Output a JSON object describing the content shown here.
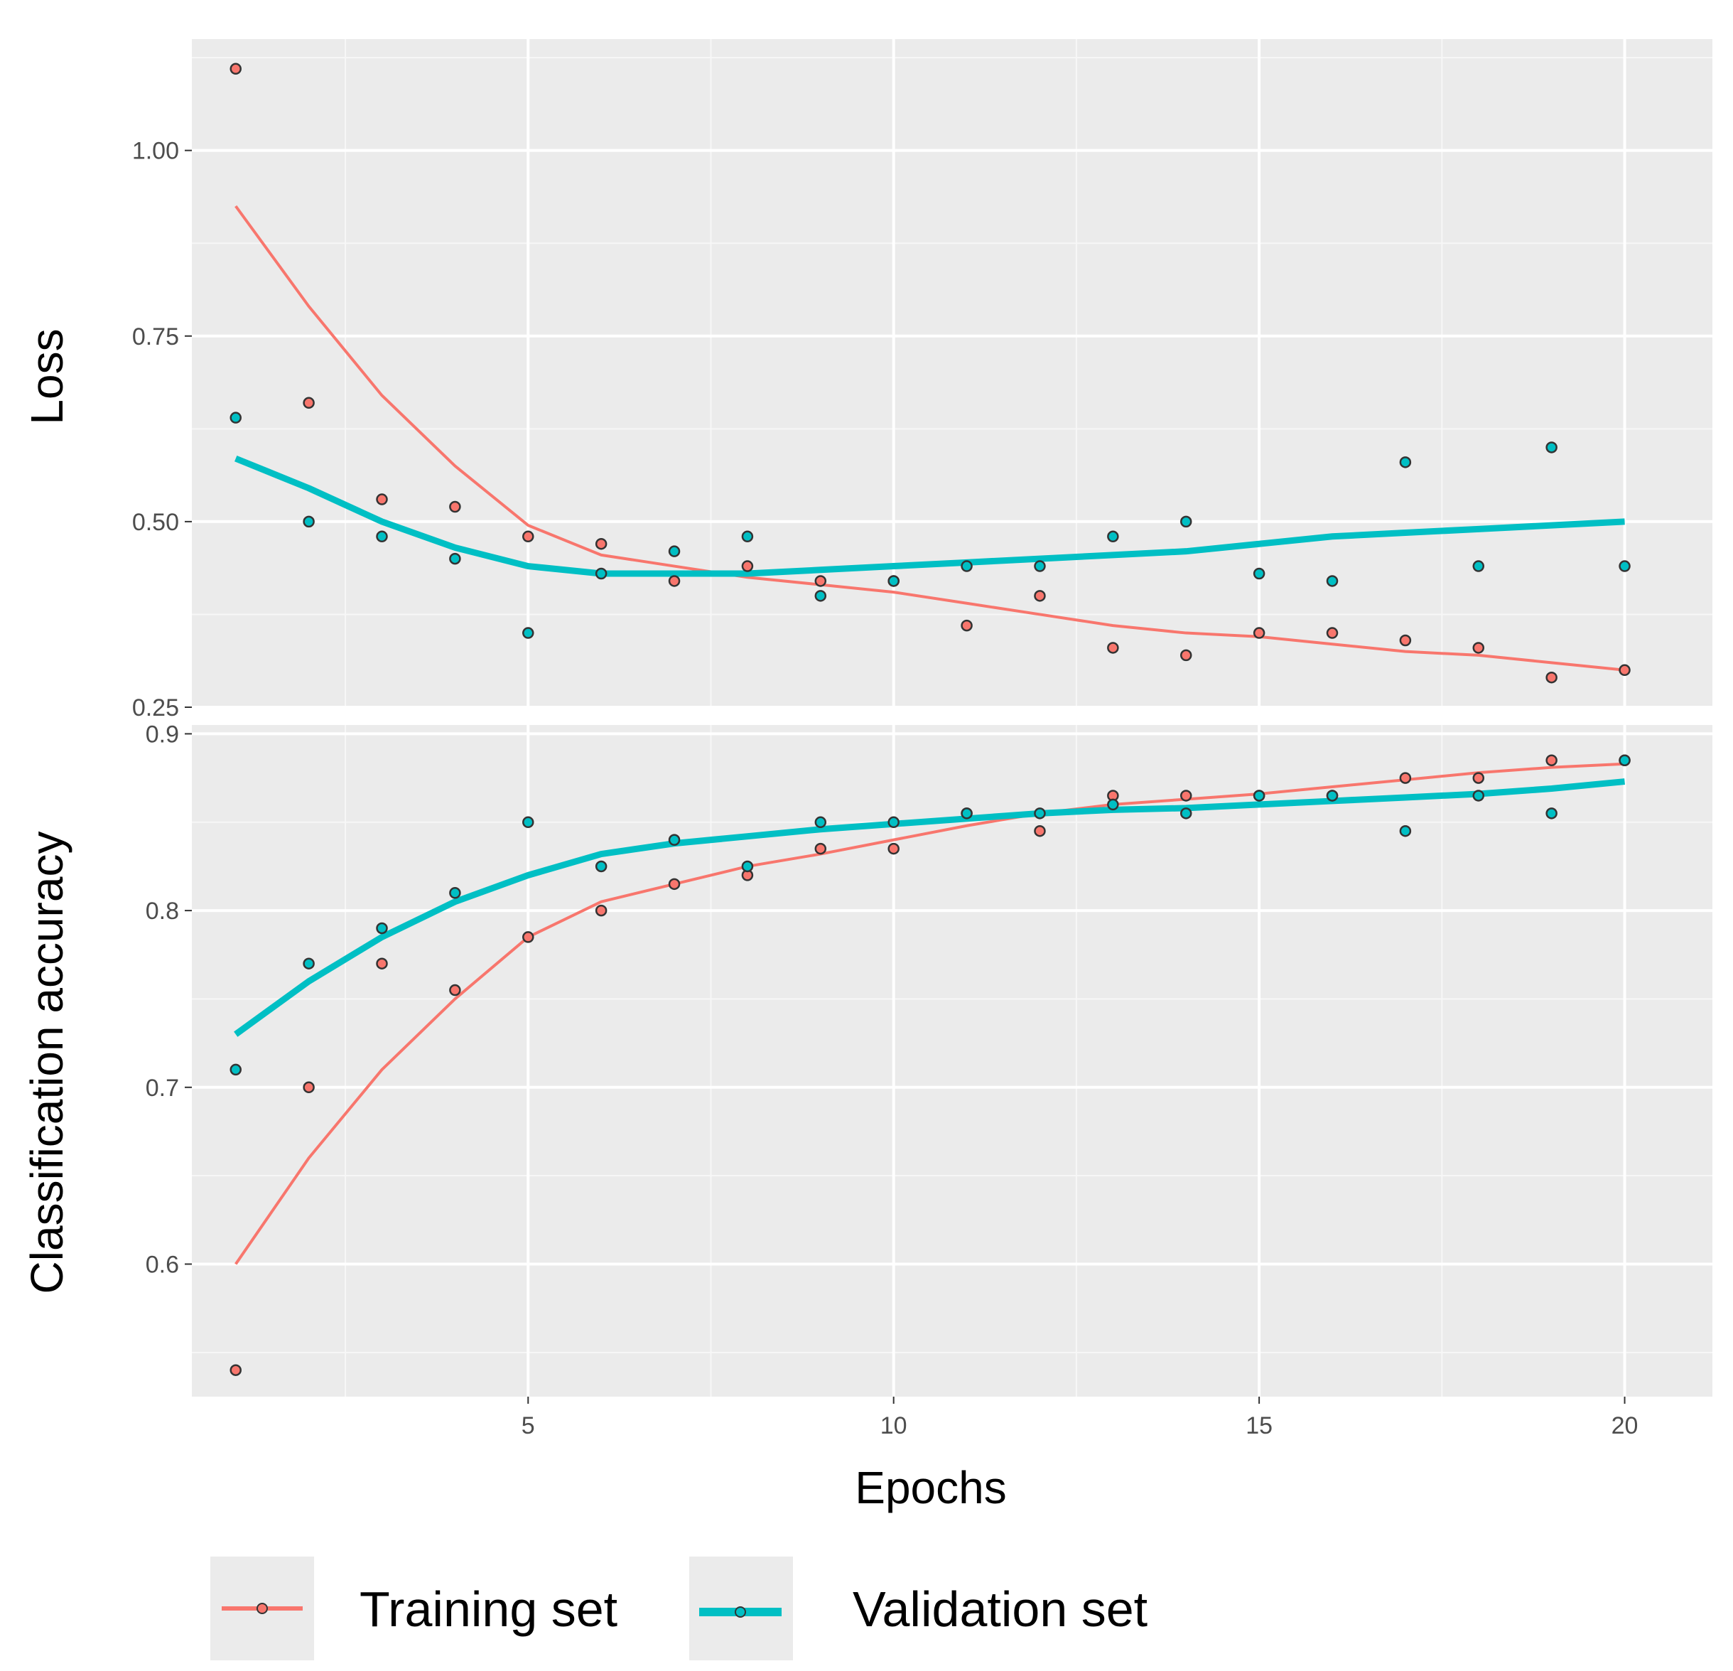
{
  "chart_data": [
    {
      "type": "scatter",
      "panel": "loss",
      "ylabel": "Loss",
      "xlabel": "Epochs",
      "xlim": [
        0.4,
        21.2
      ],
      "ylim": [
        0.25,
        1.15
      ],
      "yticks": [
        {
          "value": 0.25,
          "label": "0.25"
        },
        {
          "value": 0.5,
          "label": "0.50"
        },
        {
          "value": 0.75,
          "label": "0.75"
        },
        {
          "value": 1.0,
          "label": "1.00"
        }
      ],
      "grid": true,
      "x": [
        1,
        2,
        3,
        4,
        5,
        6,
        7,
        8,
        9,
        10,
        11,
        12,
        13,
        14,
        15,
        16,
        17,
        18,
        19,
        20
      ],
      "series": [
        {
          "name": "Training set",
          "color": "#F8766D",
          "values": [
            1.11,
            0.66,
            0.53,
            0.52,
            0.48,
            0.47,
            0.42,
            0.44,
            0.42,
            0.42,
            0.36,
            0.4,
            0.33,
            0.32,
            0.35,
            0.35,
            0.34,
            0.33,
            0.29,
            0.3
          ],
          "smooth": [
            0.925,
            0.79,
            0.67,
            0.575,
            0.495,
            0.455,
            0.44,
            0.425,
            0.415,
            0.405,
            0.39,
            0.375,
            0.36,
            0.35,
            0.345,
            0.335,
            0.325,
            0.32,
            0.31,
            0.3
          ]
        },
        {
          "name": "Validation set",
          "color": "#00BFC4",
          "values": [
            0.64,
            0.5,
            0.48,
            0.45,
            0.35,
            0.43,
            0.46,
            0.48,
            0.4,
            0.42,
            0.44,
            0.44,
            0.48,
            0.5,
            0.43,
            0.42,
            0.58,
            0.44,
            0.6,
            0.44
          ],
          "smooth": [
            0.585,
            0.545,
            0.5,
            0.465,
            0.44,
            0.43,
            0.43,
            0.43,
            0.435,
            0.44,
            0.445,
            0.45,
            0.455,
            0.46,
            0.47,
            0.48,
            0.485,
            0.49,
            0.495,
            0.5
          ]
        }
      ]
    },
    {
      "type": "scatter",
      "panel": "accuracy",
      "ylabel": "Classification accuracy",
      "xlabel": "Epochs",
      "xlim": [
        0.4,
        21.2
      ],
      "ylim": [
        0.525,
        0.905
      ],
      "yticks": [
        {
          "value": 0.6,
          "label": "0.6"
        },
        {
          "value": 0.7,
          "label": "0.7"
        },
        {
          "value": 0.8,
          "label": "0.8"
        },
        {
          "value": 0.9,
          "label": "0.9"
        }
      ],
      "xticks": [
        {
          "value": 5,
          "label": "5"
        },
        {
          "value": 10,
          "label": "10"
        },
        {
          "value": 15,
          "label": "15"
        },
        {
          "value": 20,
          "label": "20"
        }
      ],
      "grid": true,
      "x": [
        1,
        2,
        3,
        4,
        5,
        6,
        7,
        8,
        9,
        10,
        11,
        12,
        13,
        14,
        15,
        16,
        17,
        18,
        19,
        20
      ],
      "series": [
        {
          "name": "Training set",
          "color": "#F8766D",
          "values": [
            0.54,
            0.7,
            0.77,
            0.755,
            0.785,
            0.8,
            0.815,
            0.82,
            0.835,
            0.835,
            0.855,
            0.845,
            0.865,
            0.865,
            0.865,
            0.865,
            0.875,
            0.875,
            0.885,
            0.885
          ],
          "smooth": [
            0.6,
            0.66,
            0.71,
            0.75,
            0.785,
            0.805,
            0.815,
            0.825,
            0.832,
            0.84,
            0.848,
            0.855,
            0.86,
            0.863,
            0.866,
            0.87,
            0.874,
            0.878,
            0.881,
            0.883
          ]
        },
        {
          "name": "Validation set",
          "color": "#00BFC4",
          "values": [
            0.71,
            0.77,
            0.79,
            0.81,
            0.85,
            0.825,
            0.84,
            0.825,
            0.85,
            0.85,
            0.855,
            0.855,
            0.86,
            0.855,
            0.865,
            0.865,
            0.845,
            0.865,
            0.855,
            0.885
          ],
          "smooth": [
            0.73,
            0.76,
            0.785,
            0.805,
            0.82,
            0.832,
            0.838,
            0.842,
            0.846,
            0.849,
            0.852,
            0.855,
            0.857,
            0.858,
            0.86,
            0.862,
            0.864,
            0.866,
            0.869,
            0.873
          ]
        }
      ]
    }
  ],
  "legend": {
    "position": "bottom",
    "items": [
      {
        "label": "Training set",
        "color": "#F8766D"
      },
      {
        "label": "Validation set",
        "color": "#00BFC4"
      }
    ]
  }
}
